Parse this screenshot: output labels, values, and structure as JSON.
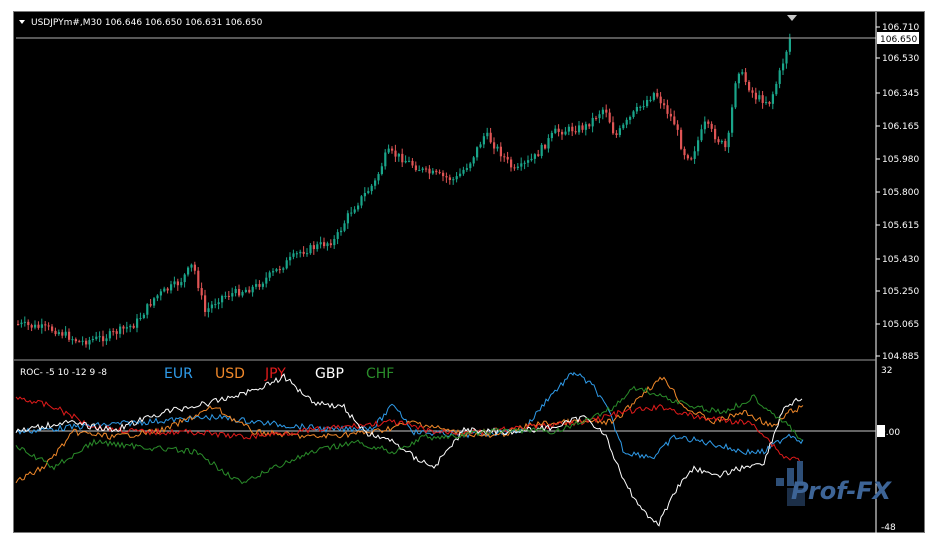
{
  "main_chart": {
    "symbol_line": "USDJPYm#,M30  106.646 106.650 106.631 106.650",
    "current_price_label": "106.650",
    "price_axis_labels": [
      "106.710",
      "106.530",
      "106.345",
      "106.165",
      "105.980",
      "105.800",
      "105.615",
      "105.430",
      "105.250",
      "105.065",
      "104.885"
    ],
    "colors": {
      "bull": "#1aa58a",
      "bear": "#e05555",
      "background": "#000000",
      "axis_text": "#ffffff"
    }
  },
  "indicator": {
    "title": "ROC- -5 10 -12 9 -8",
    "legend": [
      {
        "name": "EUR",
        "color": "#2f9be9"
      },
      {
        "name": "USD",
        "color": "#f0882a"
      },
      {
        "name": "JPY",
        "color": "#e01b1b"
      },
      {
        "name": "GBP",
        "color": "#ffffff"
      },
      {
        "name": "CHF",
        "color": "#2a8c2a"
      }
    ],
    "axis_labels": {
      "top": "32",
      "mid": "0.00",
      "bottom": "-48"
    }
  },
  "watermark": {
    "text": "Prof-FX"
  }
}
